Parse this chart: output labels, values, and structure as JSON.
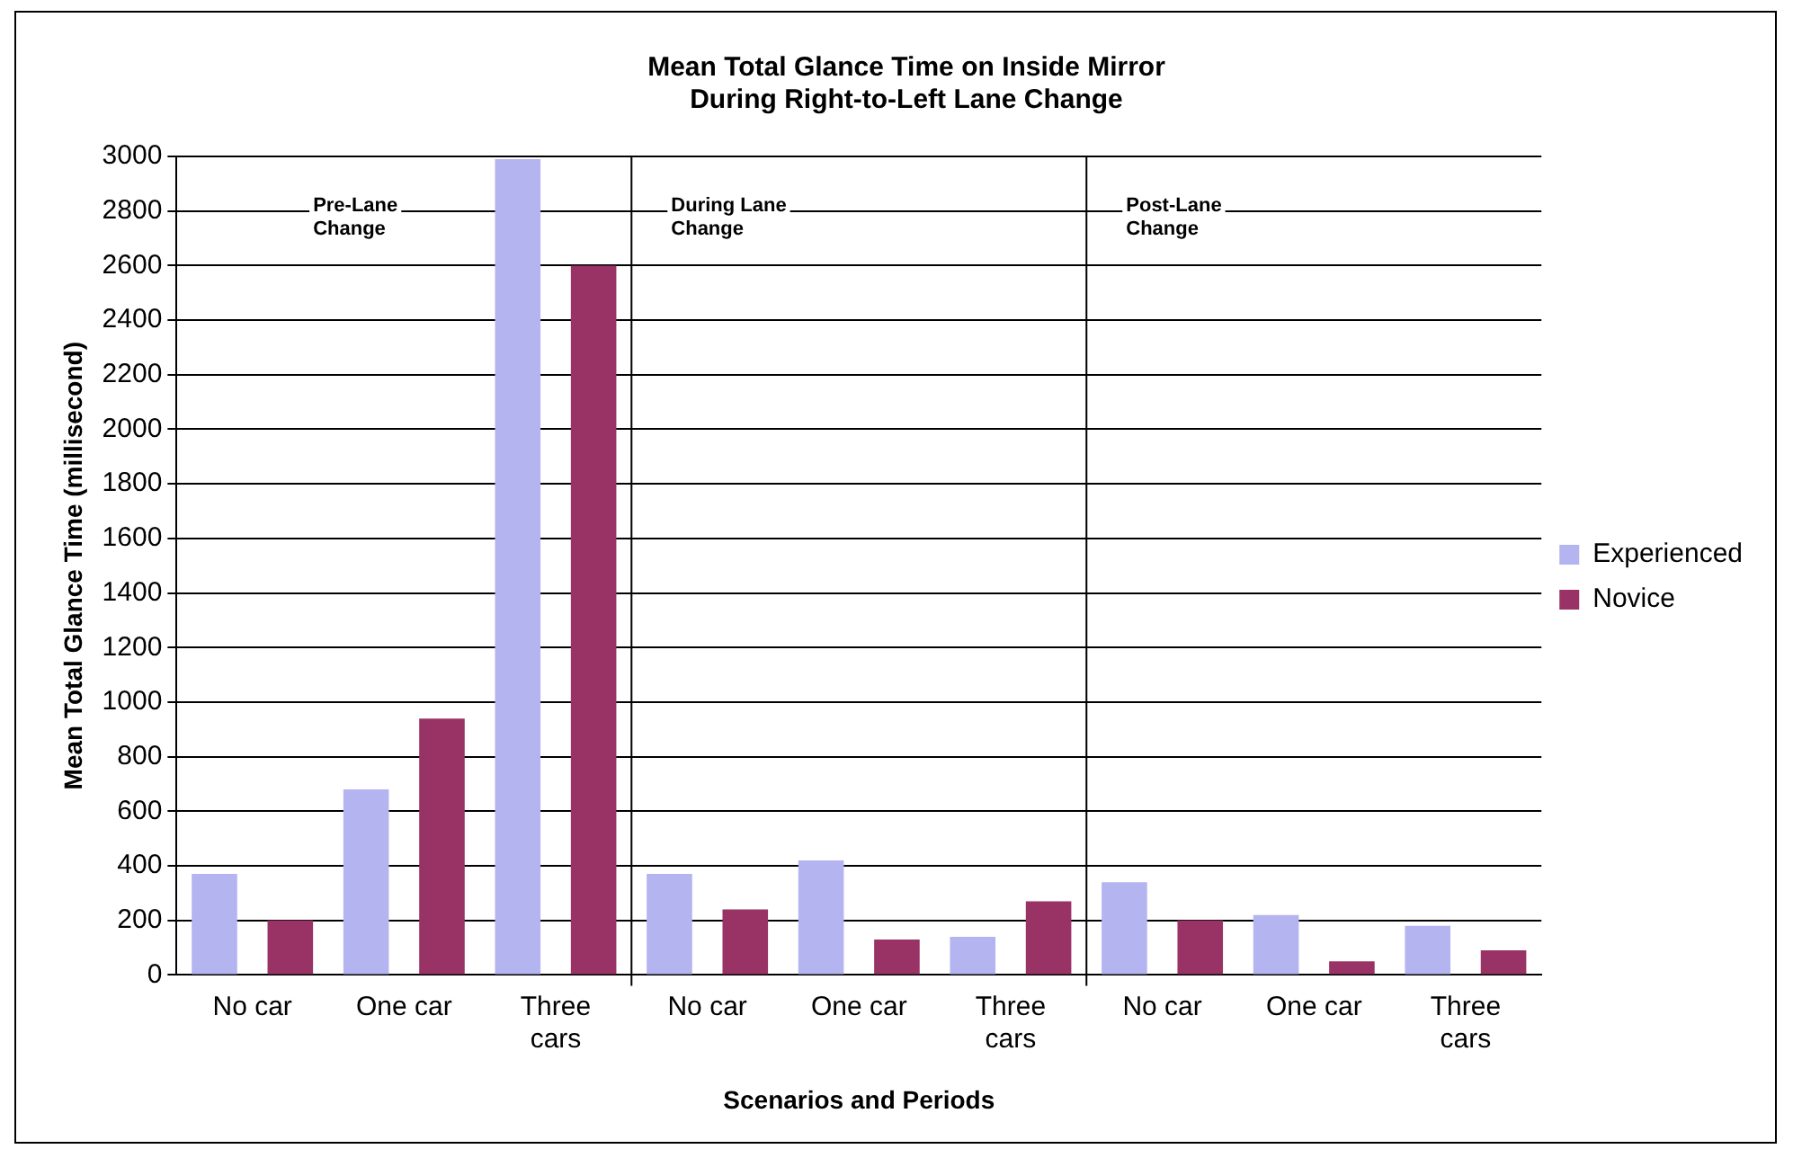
{
  "chart_data": {
    "type": "bar",
    "title": [
      "Mean Total Glance Time on Inside Mirror",
      "During Right-to-Left Lane Change"
    ],
    "xlabel": "Scenarios and Periods",
    "ylabel": "Mean Total Glance Time (millisecond)",
    "categories": [
      "No car",
      "One car",
      "Three cars",
      "No car",
      "One car",
      "Three cars",
      "No car",
      "One car",
      "Three cars"
    ],
    "series": [
      {
        "name": "Experienced",
        "color": "#b4b4f0",
        "values": [
          370,
          680,
          2990,
          370,
          420,
          140,
          340,
          220,
          180
        ]
      },
      {
        "name": "Novice",
        "color": "#993366",
        "values": [
          200,
          940,
          2600,
          240,
          130,
          270,
          200,
          50,
          90
        ]
      }
    ],
    "ylim": [
      0,
      3000
    ],
    "yticks": [
      0,
      200,
      400,
      600,
      800,
      1000,
      1200,
      1400,
      1600,
      1800,
      2000,
      2200,
      2400,
      2600,
      2800,
      3000
    ],
    "annotations": [
      "Pre-Lane Change",
      "During Lane Change",
      "Post-Lane Change"
    ],
    "grid": "y",
    "legend": "right"
  }
}
